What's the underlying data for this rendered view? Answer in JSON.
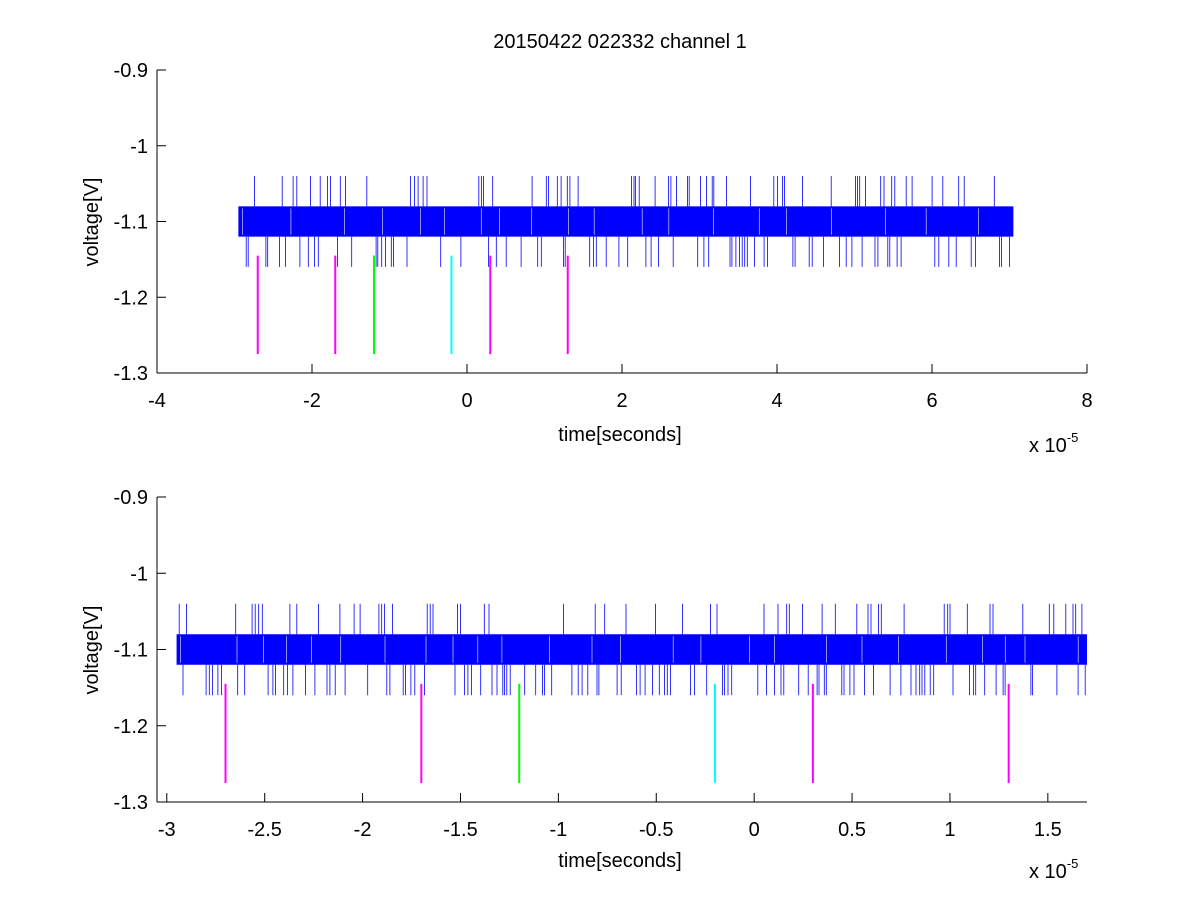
{
  "figure": {
    "title": "20150422 022332 channel 1"
  },
  "colors": {
    "signal": "#0000ff",
    "axes": "#000000",
    "marker_magenta": "#ff00ff",
    "marker_green": "#00ff00",
    "marker_cyan": "#00ffff"
  },
  "chart_data": [
    {
      "type": "line",
      "title": "20150422 022332 channel 1",
      "xlabel": "time[seconds]",
      "ylabel": "voltage[V]",
      "x_exponent_label": "x 10",
      "x_exponent": "-5",
      "xlim": [
        -4e-05,
        8e-05
      ],
      "ylim": [
        -1.3,
        -0.9
      ],
      "xticks": [
        -4e-05,
        -2e-05,
        0,
        2e-05,
        4e-05,
        6e-05,
        8e-05
      ],
      "xtick_labels": [
        "-4",
        "-2",
        "0",
        "2",
        "4",
        "6",
        "8"
      ],
      "yticks": [
        -1.3,
        -1.2,
        -1.1,
        -1.0,
        -0.9
      ],
      "ytick_labels": [
        "-1.3",
        "-1.2",
        "-1.1",
        "-1",
        "-0.9"
      ],
      "grid": false,
      "series": [
        {
          "kind": "dense-digital-noise",
          "color": "#0000ff",
          "x_range": [
            -2.95e-05,
            7.05e-05
          ],
          "band": [
            -1.12,
            -1.08
          ],
          "spike_levels": [
            -1.04,
            -1.16
          ]
        }
      ],
      "markers": [
        {
          "x": -2.7e-05,
          "y": [
            -1.275,
            -1.145
          ],
          "color": "#ff00ff"
        },
        {
          "x": -1.7e-05,
          "y": [
            -1.275,
            -1.145
          ],
          "color": "#ff00ff"
        },
        {
          "x": -1.2e-05,
          "y": [
            -1.275,
            -1.145
          ],
          "color": "#00ff00"
        },
        {
          "x": -2e-06,
          "y": [
            -1.275,
            -1.145
          ],
          "color": "#00ffff"
        },
        {
          "x": 3e-06,
          "y": [
            -1.275,
            -1.145
          ],
          "color": "#ff00ff"
        },
        {
          "x": 1.3e-05,
          "y": [
            -1.275,
            -1.145
          ],
          "color": "#ff00ff"
        }
      ]
    },
    {
      "type": "line",
      "xlabel": "time[seconds]",
      "ylabel": "voltage[V]",
      "x_exponent_label": "x 10",
      "x_exponent": "-5",
      "xlim": [
        -3.05e-05,
        1.7e-05
      ],
      "ylim": [
        -1.3,
        -0.9
      ],
      "xticks": [
        -3e-05,
        -2.5e-05,
        -2e-05,
        -1.5e-05,
        -1e-05,
        -5e-06,
        0,
        5e-06,
        1e-05,
        1.5e-05
      ],
      "xtick_labels": [
        "-3",
        "-2.5",
        "-2",
        "-1.5",
        "-1",
        "-0.5",
        "0",
        "0.5",
        "1",
        "1.5"
      ],
      "yticks": [
        -1.3,
        -1.2,
        -1.1,
        -1.0,
        -0.9
      ],
      "ytick_labels": [
        "-1.3",
        "-1.2",
        "-1.1",
        "-1",
        "-0.9"
      ],
      "grid": false,
      "series": [
        {
          "kind": "dense-digital-noise",
          "color": "#0000ff",
          "x_range": [
            -2.95e-05,
            1.7e-05
          ],
          "band": [
            -1.12,
            -1.08
          ],
          "spike_levels": [
            -1.04,
            -1.16
          ]
        }
      ],
      "markers": [
        {
          "x": -2.7e-05,
          "y": [
            -1.275,
            -1.145
          ],
          "color": "#ff00ff"
        },
        {
          "x": -1.7e-05,
          "y": [
            -1.275,
            -1.145
          ],
          "color": "#ff00ff"
        },
        {
          "x": -1.2e-05,
          "y": [
            -1.275,
            -1.145
          ],
          "color": "#00ff00"
        },
        {
          "x": -2e-06,
          "y": [
            -1.275,
            -1.145
          ],
          "color": "#00ffff"
        },
        {
          "x": 3e-06,
          "y": [
            -1.275,
            -1.145
          ],
          "color": "#ff00ff"
        },
        {
          "x": 1.3e-05,
          "y": [
            -1.275,
            -1.145
          ],
          "color": "#ff00ff"
        }
      ]
    }
  ]
}
